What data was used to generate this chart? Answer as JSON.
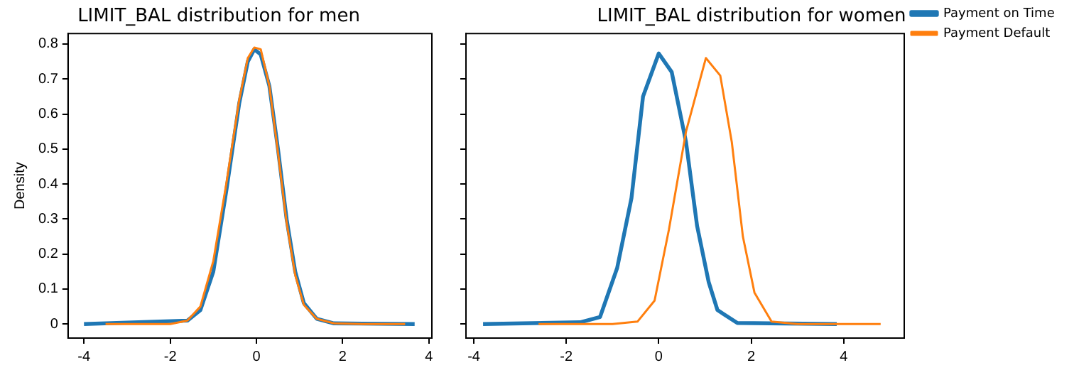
{
  "chart_data": [
    {
      "type": "line",
      "title": "LIMIT_BAL distribution for men",
      "ylabel": "Density",
      "xlim": [
        -4.37,
        4.07
      ],
      "ylim": [
        -0.04,
        0.83
      ],
      "xticks": [
        -4,
        -2,
        0,
        2,
        4
      ],
      "yticks": [
        0.0,
        0.1,
        0.2,
        0.3,
        0.4,
        0.5,
        0.6,
        0.7,
        0.8
      ],
      "grid": false,
      "legend": false,
      "series": [
        {
          "color": "#1f77b4",
          "x": [
            -4,
            -1.6,
            -1.3,
            -1,
            -0.7,
            -0.4,
            -0.2,
            -0.05,
            0.1,
            0.3,
            0.5,
            0.7,
            0.9,
            1.1,
            1.4,
            1.8,
            3.67
          ],
          "values": [
            0,
            0.01,
            0.04,
            0.15,
            0.38,
            0.63,
            0.75,
            0.785,
            0.77,
            0.68,
            0.5,
            0.3,
            0.15,
            0.06,
            0.015,
            0.002,
            0
          ]
        },
        {
          "color": "#ff7f0e",
          "x": [
            -3.5,
            -2,
            -1.6,
            -1.3,
            -1,
            -0.7,
            -0.4,
            -0.2,
            -0.05,
            0.1,
            0.3,
            0.5,
            0.7,
            0.9,
            1.1,
            1.4,
            1.8,
            2.5,
            3.45
          ],
          "values": [
            0,
            0,
            0.01,
            0.05,
            0.18,
            0.4,
            0.64,
            0.76,
            0.79,
            0.785,
            0.68,
            0.49,
            0.29,
            0.14,
            0.055,
            0.015,
            0.002,
            0,
            0
          ]
        }
      ]
    },
    {
      "type": "line",
      "title": "LIMIT_BAL distribution for women",
      "xlim": [
        -4.17,
        5.31
      ],
      "ylim": [
        -0.04,
        0.83
      ],
      "xticks": [
        -4,
        -2,
        0,
        2,
        4
      ],
      "yticks": [
        {
          "value": 0.0,
          "label": null
        },
        {
          "value": 0.1,
          "label": null
        },
        {
          "value": 0.2,
          "label": null
        },
        {
          "value": 0.3,
          "label": null
        },
        {
          "value": 0.4,
          "label": null
        },
        {
          "value": 0.5,
          "label": null
        },
        {
          "value": 0.6,
          "label": null
        },
        {
          "value": 0.7,
          "label": null
        },
        {
          "value": 0.8,
          "label": null
        }
      ],
      "tick_labels": "x",
      "grid": false,
      "legend": "top right",
      "series": [
        {
          "name": "Payment on Time",
          "color": "#1f77b4",
          "x": [
            -3.8,
            -1.7,
            -1.27,
            -0.9,
            -0.59,
            -0.34,
            0,
            0.28,
            0.59,
            0.83,
            1.08,
            1.27,
            1.7,
            3.85
          ],
          "values": [
            0,
            0.005,
            0.02,
            0.16,
            0.36,
            0.65,
            0.773,
            0.72,
            0.52,
            0.28,
            0.12,
            0.04,
            0.003,
            0
          ]
        },
        {
          "name": "Payment Default",
          "color": "#ff7f0e",
          "x": [
            -2.6,
            -1,
            -0.46,
            -0.09,
            0.22,
            0.59,
            1.02,
            1.33,
            1.58,
            1.82,
            2.07,
            2.44,
            3,
            4.8
          ],
          "values": [
            0,
            0,
            0.007,
            0.067,
            0.27,
            0.55,
            0.76,
            0.71,
            0.52,
            0.25,
            0.09,
            0.007,
            0,
            0
          ]
        }
      ]
    }
  ]
}
